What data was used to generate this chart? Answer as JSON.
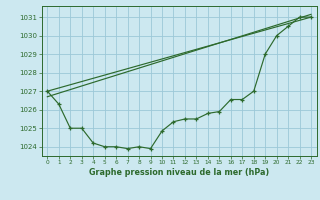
{
  "line1_x": [
    0,
    1,
    2,
    3,
    4,
    5,
    6,
    7,
    8,
    9,
    10,
    11,
    12,
    13,
    14,
    15,
    16,
    17,
    18,
    19,
    20,
    21,
    22,
    23
  ],
  "line1_y": [
    1027.0,
    1026.3,
    1025.0,
    1025.0,
    1024.2,
    1024.0,
    1024.0,
    1023.9,
    1024.0,
    1023.9,
    1024.85,
    1025.35,
    1025.5,
    1025.5,
    1025.8,
    1025.9,
    1026.55,
    1026.55,
    1027.0,
    1029.0,
    1030.0,
    1030.5,
    1031.0,
    1031.0
  ],
  "tline1_x": [
    0,
    23
  ],
  "tline1_y": [
    1027.0,
    1031.0
  ],
  "tline2_x": [
    0,
    23
  ],
  "tline2_y": [
    1026.7,
    1031.15
  ],
  "line_color": "#2d6a2d",
  "bg_color": "#cce8f0",
  "grid_color": "#9cc8d8",
  "title": "Graphe pression niveau de la mer (hPa)",
  "xlim": [
    -0.5,
    23.5
  ],
  "ylim": [
    1023.5,
    1031.6
  ],
  "yticks": [
    1024,
    1025,
    1026,
    1027,
    1028,
    1029,
    1030,
    1031
  ],
  "xticks": [
    0,
    1,
    2,
    3,
    4,
    5,
    6,
    7,
    8,
    9,
    10,
    11,
    12,
    13,
    14,
    15,
    16,
    17,
    18,
    19,
    20,
    21,
    22,
    23
  ]
}
